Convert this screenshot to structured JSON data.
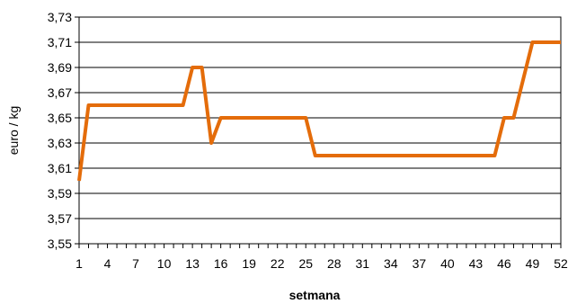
{
  "chart_data": {
    "type": "line",
    "title": "",
    "xlabel": "setmana",
    "ylabel": "euro / kg",
    "xlim": [
      1,
      52
    ],
    "ylim": [
      3.55,
      3.73
    ],
    "y_ticks": [
      3.55,
      3.57,
      3.59,
      3.61,
      3.63,
      3.65,
      3.67,
      3.69,
      3.71,
      3.73
    ],
    "y_tick_labels": [
      "3,55",
      "3,57",
      "3,59",
      "3,61",
      "3,63",
      "3,65",
      "3,67",
      "3,69",
      "3,71",
      "3,73"
    ],
    "x_tick_labels": [
      "1",
      "4",
      "7",
      "10",
      "13",
      "16",
      "19",
      "22",
      "25",
      "28",
      "31",
      "34",
      "37",
      "40",
      "43",
      "46",
      "49",
      "52"
    ],
    "grid": "horizontal",
    "legend": "none",
    "series": [
      {
        "color": "#E46C0A",
        "x": [
          1,
          2,
          3,
          4,
          5,
          6,
          7,
          8,
          9,
          10,
          11,
          12,
          13,
          14,
          15,
          16,
          17,
          18,
          19,
          20,
          21,
          22,
          23,
          24,
          25,
          26,
          27,
          28,
          29,
          30,
          31,
          32,
          33,
          34,
          35,
          36,
          37,
          38,
          39,
          40,
          41,
          42,
          43,
          44,
          45,
          46,
          47,
          48,
          49,
          50,
          51,
          52
        ],
        "values": [
          3.6,
          3.66,
          3.66,
          3.66,
          3.66,
          3.66,
          3.66,
          3.66,
          3.66,
          3.66,
          3.66,
          3.66,
          3.69,
          3.69,
          3.63,
          3.65,
          3.65,
          3.65,
          3.65,
          3.65,
          3.65,
          3.65,
          3.65,
          3.65,
          3.65,
          3.62,
          3.62,
          3.62,
          3.62,
          3.62,
          3.62,
          3.62,
          3.62,
          3.62,
          3.62,
          3.62,
          3.62,
          3.62,
          3.62,
          3.62,
          3.62,
          3.62,
          3.62,
          3.62,
          3.62,
          3.65,
          3.65,
          3.68,
          3.71,
          3.71,
          3.71,
          3.71
        ]
      }
    ]
  }
}
